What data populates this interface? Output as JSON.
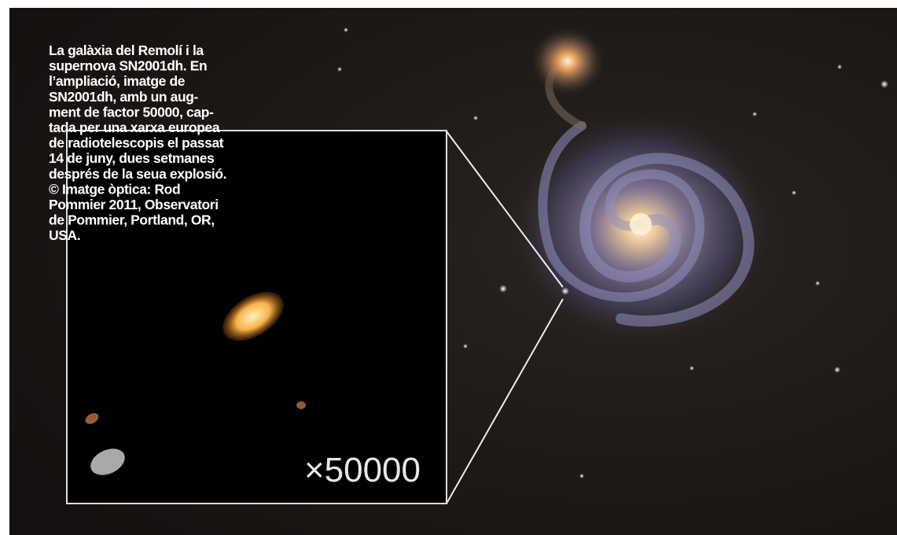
{
  "caption": {
    "lines": [
      "La galàxia del Remolí i la",
      "supernova SN2001dh. En",
      "l’ampliació, imatge de",
      "SN2001dh, amb un aug-",
      "ment de factor 50000, cap-",
      "tada per una xarxa europea",
      "de radiotelescopis el passat",
      "14 de juny, dues setmanes",
      "després de la seua explosió.",
      "© Imatge òptica: Rod",
      "Pommier 2011, Observatori",
      "de Pommier, Portland, OR,",
      "USA."
    ]
  },
  "inset": {
    "label": "×50000"
  }
}
